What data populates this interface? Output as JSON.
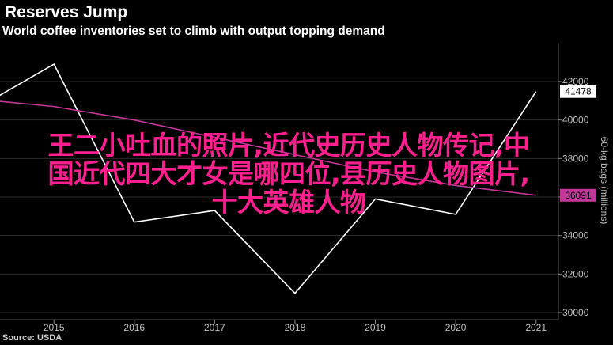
{
  "header": {
    "title": "Reserves Jump",
    "subtitle": "World coffee inventories set to climb with output topping demand"
  },
  "footer": {
    "source": "Source: USDA"
  },
  "overlay": {
    "line1": "王二小吐血的照片,近代史历史人物传记,中",
    "line2": "国近代四大才女是哪四位,县历史人物图片,",
    "line3": "十大英雄人物"
  },
  "chart_data": {
    "type": "line",
    "ylabel": "60-kg bags (millions)",
    "ylim": [
      30000,
      43500
    ],
    "yticks": [
      30000,
      32000,
      34000,
      36000,
      38000,
      40000,
      42000
    ],
    "xticks": [
      2015,
      2016,
      2017,
      2018,
      2019,
      2020,
      2021
    ],
    "xlim": [
      2014.25,
      2021.2
    ],
    "series": [
      {
        "color": "#ffffff",
        "x": [
          2014.25,
          2015,
          2016,
          2017,
          2018,
          2019,
          2020,
          2021
        ],
        "values": [
          41100,
          42900,
          34700,
          35300,
          31000,
          35900,
          35100,
          41478
        ],
        "end_label": "41478"
      },
      {
        "color": "#c4379a",
        "x": [
          2014.25,
          2015,
          2016,
          2017,
          2018,
          2019,
          2020,
          2021
        ],
        "values": [
          41000,
          40700,
          40000,
          39100,
          38200,
          37300,
          36600,
          36091
        ],
        "end_label": "36091"
      }
    ]
  }
}
